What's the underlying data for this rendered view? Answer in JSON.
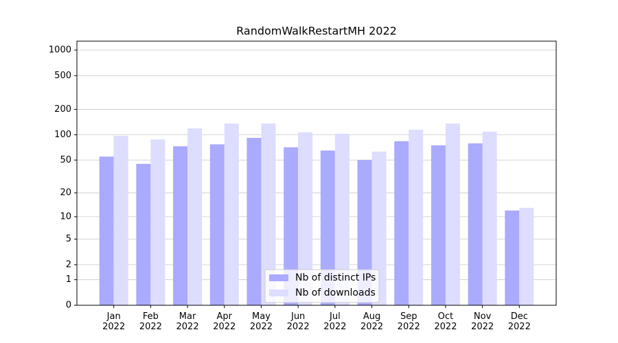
{
  "chart_data": {
    "type": "bar",
    "title": "RandomWalkRestartMH 2022",
    "yscale": "log1p",
    "categories": [
      "Jan\n2022",
      "Feb\n2022",
      "Mar\n2022",
      "Apr\n2022",
      "May\n2022",
      "Jun\n2022",
      "Jul\n2022",
      "Aug\n2022",
      "Sep\n2022",
      "Oct\n2022",
      "Nov\n2022",
      "Dec\n2022"
    ],
    "series": [
      {
        "name": "Nb of distinct IPs",
        "color": "#aaaaff",
        "values": [
          55,
          45,
          73,
          77,
          92,
          71,
          65,
          50,
          84,
          75,
          79,
          12
        ]
      },
      {
        "name": "Nb of downloads",
        "color": "#ddddff",
        "values": [
          97,
          88,
          119,
          136,
          136,
          107,
          103,
          63,
          115,
          136,
          109,
          13
        ]
      }
    ],
    "ylim": [
      0,
      1273
    ],
    "yticks": [
      0,
      1,
      2,
      5,
      10,
      20,
      50,
      100,
      200,
      500,
      1000
    ],
    "grid": true,
    "legend": "lower center"
  }
}
